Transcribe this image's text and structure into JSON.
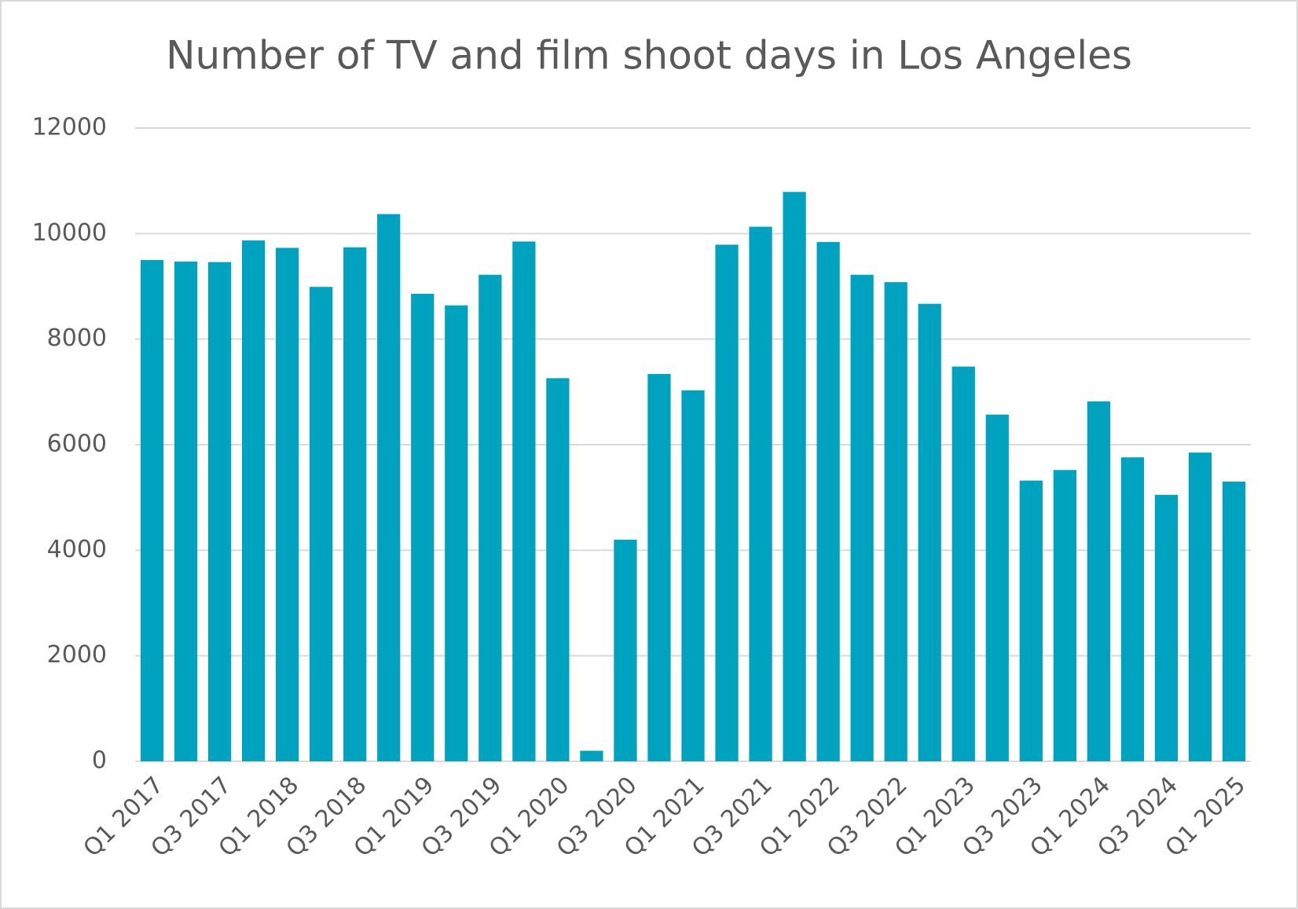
{
  "chart_data": {
    "type": "bar",
    "title": "Number of TV and film shoot days in Los Angeles",
    "categories": [
      "Q1 2017",
      null,
      "Q3 2017",
      null,
      "Q1 2018",
      null,
      "Q3 2018",
      null,
      "Q1 2019",
      null,
      "Q3 2019",
      null,
      "Q1 2020",
      null,
      "Q3 2020",
      null,
      "Q1 2021",
      null,
      "Q3 2021",
      null,
      "Q1 2022",
      null,
      "Q3 2022",
      null,
      "Q1 2023",
      null,
      "Q3 2023",
      null,
      "Q1 2024",
      null,
      "Q3 2024",
      null,
      "Q1 2025"
    ],
    "values": [
      9500,
      9470,
      9460,
      9870,
      9730,
      8990,
      9740,
      10370,
      8860,
      8640,
      9220,
      9850,
      7260,
      200,
      4200,
      7340,
      7030,
      9790,
      10130,
      10790,
      9840,
      9220,
      9080,
      8670,
      7480,
      6570,
      5320,
      5520,
      6820,
      5760,
      5050,
      5850,
      5300
    ],
    "color": "#00a3bf",
    "ylim": [
      0,
      12000
    ],
    "yticks": [
      0,
      2000,
      4000,
      6000,
      8000,
      10000,
      12000
    ],
    "grid": true
  }
}
